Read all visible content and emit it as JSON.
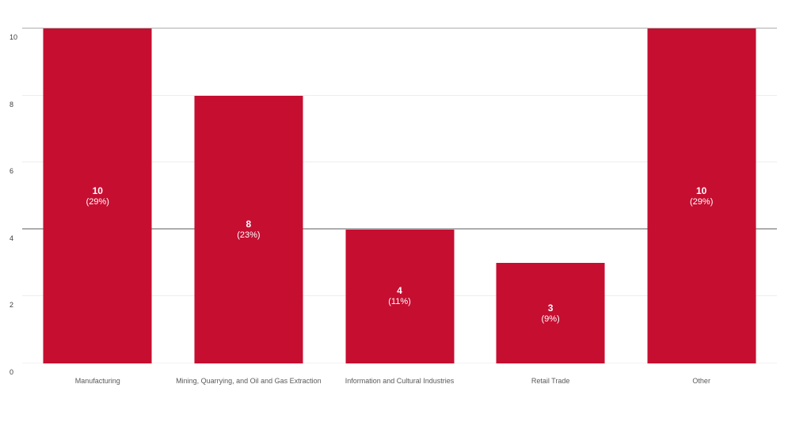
{
  "chart_data": {
    "type": "bar",
    "title": "",
    "xlabel": "",
    "ylabel": "",
    "categories": [
      "Manufacturing",
      "Mining, Quarrying, and Oil and Gas Extraction",
      "Information and Cultural Industries",
      "Retail Trade",
      "Other"
    ],
    "values": [
      10,
      8,
      4,
      3,
      10
    ],
    "value_labels": [
      "10",
      "8",
      "4",
      "3",
      "10"
    ],
    "percent_labels": [
      "(29%)",
      "(23%)",
      "(11%)",
      "(9%)",
      "(29%)"
    ],
    "ylim": [
      0,
      10
    ],
    "yticks": [
      0,
      2,
      4,
      6,
      8,
      10
    ],
    "strong_gridlines": [
      4,
      10
    ],
    "grid": "horizontal",
    "legend": "none",
    "colors": {
      "bar": "#c60e31",
      "bar_label_text": "#ffffff",
      "strong_gridline": "#aeaeae",
      "faint_gridline": "#ededed",
      "zero_gridline": "#f2f2f2",
      "y_tick_text": "#3d3d3d",
      "x_label_text": "#595959",
      "background": "#ffffff"
    }
  }
}
